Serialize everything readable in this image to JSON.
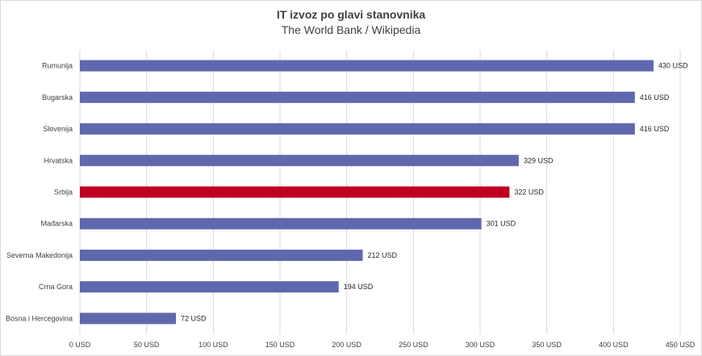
{
  "chart_data": {
    "type": "bar",
    "orientation": "horizontal",
    "title": "IT izvoz po glavi stanovnika",
    "subtitle": "The World Bank / Wikipedia",
    "categories": [
      "Rumunija",
      "Bugarska",
      "Slovenija",
      "Hrvatska",
      "Srbija",
      "Mađarska",
      "Severna Makedonija",
      "Crna Gora",
      "Bosna i Hercegovina"
    ],
    "values": [
      430,
      416,
      416,
      329,
      322,
      301,
      212,
      194,
      72
    ],
    "data_labels": [
      "430 USD",
      "416 USD",
      "416 USD",
      "329 USD",
      "322 USD",
      "301 USD",
      "212 USD",
      "194 USD",
      "72 USD"
    ],
    "xlim": [
      0,
      450
    ],
    "x_ticks": [
      0,
      50,
      100,
      150,
      200,
      250,
      300,
      350,
      400,
      450
    ],
    "x_tick_labels": [
      "0 USD",
      "50 USD",
      "100 USD",
      "150 USD",
      "200 USD",
      "250 USD",
      "300 USD",
      "350 USD",
      "400 USD",
      "450 USD"
    ],
    "xlabel": "",
    "ylabel": "",
    "grid": "vertical",
    "legend": "none",
    "colors": {
      "default": "#5f68ad",
      "highlight": "#c00020",
      "grid": "#d9d9d9",
      "text": "#404040"
    },
    "highlight_category": "Srbija"
  }
}
